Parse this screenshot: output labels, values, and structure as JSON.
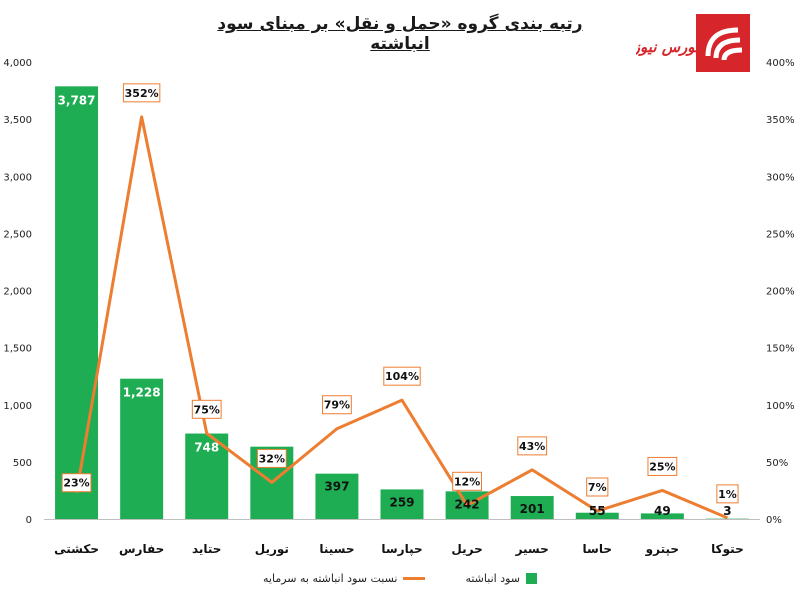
{
  "chart_data": {
    "type": "bar",
    "title": "رتبه بندی گروه «حمل و نقل» بر مبنای سود انباشته",
    "categories": [
      "حکشتی",
      "حفارس",
      "حتاید",
      "توریل",
      "حسینا",
      "حپارسا",
      "حریل",
      "حسیر",
      "حاسا",
      "حپترو",
      "حتوکا"
    ],
    "series": [
      {
        "name": "سود انباشته",
        "type": "bar",
        "axis": "left",
        "values": [
          3787,
          1228,
          748,
          633,
          397,
          259,
          242,
          201,
          55,
          49,
          3
        ],
        "labels": [
          "3,787",
          "1,228",
          "748",
          "633",
          "397",
          "259",
          "242",
          "201",
          "55",
          "49",
          "3"
        ],
        "color": "#1ead52"
      },
      {
        "name": "نسبت سود انباشته به سرمایه",
        "type": "line",
        "axis": "right",
        "values": [
          23,
          352,
          75,
          32,
          79,
          104,
          12,
          43,
          7,
          25,
          1
        ],
        "labels": [
          "23%",
          "352%",
          "75%",
          "32%",
          "79%",
          "104%",
          "12%",
          "43%",
          "7%",
          "25%",
          "1%"
        ],
        "color": "#ed7d31"
      }
    ],
    "y_left": {
      "ylim": [
        0,
        4000
      ],
      "ticks": [
        "0",
        "500",
        "1,000",
        "1,500",
        "2,000",
        "2,500",
        "3,000",
        "3,500",
        "4,000"
      ]
    },
    "y_right": {
      "ylim": [
        0,
        400
      ],
      "ticks": [
        "0%",
        "50%",
        "100%",
        "150%",
        "200%",
        "250%",
        "300%",
        "350%",
        "400%"
      ]
    },
    "legend_position": "bottom",
    "grid": false
  },
  "logo": {
    "text": "بورس نیوز",
    "color": "#d7262b"
  }
}
